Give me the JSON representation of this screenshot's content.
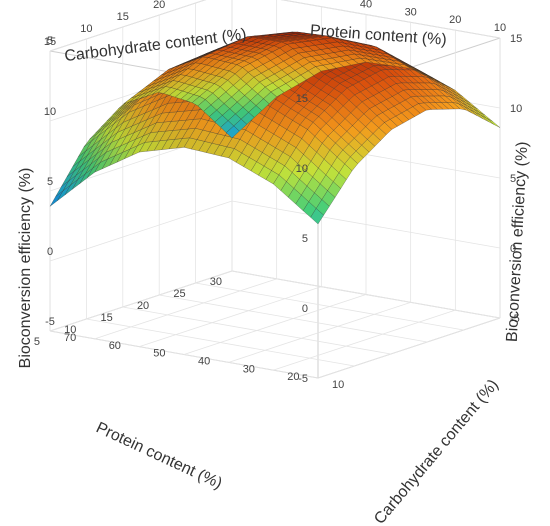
{
  "chart_data": {
    "type": "surface3d",
    "title": "",
    "zlabel": "Bioconversion efficiency (%)",
    "axes": {
      "carbohydrate": {
        "label": "Carbohydrate content (%)",
        "range": [
          10,
          70
        ],
        "ticks": [
          10,
          20,
          30,
          40,
          50,
          60,
          70
        ]
      },
      "protein": {
        "label": "Protein content (%)",
        "range": [
          5,
          30
        ],
        "ticks": [
          5,
          10,
          15,
          20,
          25,
          30
        ]
      },
      "efficiency": {
        "label": "Bioconversion efficiency (%)",
        "range": [
          -5,
          15
        ],
        "ticks": [
          -5,
          0,
          5,
          10,
          15
        ]
      }
    },
    "grid_values": {
      "carbohydrate": [
        10,
        20,
        30,
        40,
        50,
        60,
        70
      ],
      "protein": [
        5,
        10,
        15,
        20,
        25,
        30
      ],
      "efficiency": [
        [
          6.0,
          9.2,
          11.0,
          11.6,
          10.8,
          8.6
        ],
        [
          8.3,
          11.6,
          13.4,
          13.9,
          13.0,
          10.7
        ],
        [
          9.6,
          13.0,
          14.8,
          15.2,
          14.2,
          11.7
        ],
        [
          9.8,
          13.3,
          15.2,
          15.5,
          14.3,
          11.6
        ],
        [
          8.9,
          12.5,
          14.4,
          14.6,
          13.3,
          10.4
        ],
        [
          6.9,
          10.6,
          12.5,
          12.6,
          11.1,
          8.0
        ],
        [
          3.9,
          7.6,
          9.5,
          9.5,
          7.8,
          4.5
        ]
      ]
    },
    "colorscale": [
      "#0a2fd6",
      "#1aa7e0",
      "#45d07a",
      "#c6e43a",
      "#f29a1c",
      "#d9520d",
      "#a51e04"
    ],
    "grid": true
  }
}
